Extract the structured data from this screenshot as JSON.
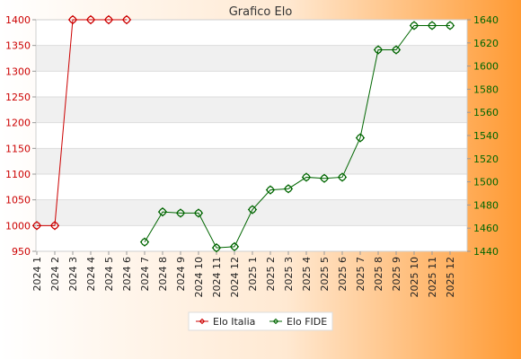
{
  "chart_data": {
    "type": "line",
    "title": "Grafico Elo",
    "categories": [
      "2024 1",
      "2024 2",
      "2024 3",
      "2024 4",
      "2024 5",
      "2024 6",
      "2024 7",
      "2024 8",
      "2024 9",
      "2024 10",
      "2024 11",
      "2024 12",
      "2025 1",
      "2025 2",
      "2025 3",
      "2025 4",
      "2025 5",
      "2025 6",
      "2025 7",
      "2025 8",
      "2025 9",
      "2025 10",
      "2025 11",
      "2025 12"
    ],
    "axes": {
      "left": {
        "min": 950,
        "max": 1400,
        "ticks": [
          "950",
          "1000",
          "1050",
          "1100",
          "1150",
          "1200",
          "1250",
          "1300",
          "1350",
          "1400"
        ],
        "color": "#cc0000"
      },
      "right": {
        "min": 1440,
        "max": 1640,
        "ticks": [
          "1440",
          "1460",
          "1480",
          "1500",
          "1520",
          "1540",
          "1560",
          "1580",
          "1600",
          "1620",
          "1640"
        ],
        "color": "#006600"
      }
    },
    "series": [
      {
        "name": "Elo Italia",
        "axis": "left",
        "color": "#cc0000",
        "values": [
          1000,
          1000,
          1400,
          1400,
          1400,
          1400,
          null,
          null,
          null,
          null,
          null,
          null,
          null,
          null,
          null,
          null,
          null,
          null,
          null,
          null,
          null,
          null,
          null,
          null
        ]
      },
      {
        "name": "Elo FIDE",
        "axis": "right",
        "color": "#006600",
        "values": [
          null,
          null,
          null,
          null,
          null,
          null,
          1448,
          1474,
          1473,
          1473,
          1443,
          1444,
          1476,
          1493,
          1494,
          1504,
          1503,
          1504,
          1538,
          1614,
          1614,
          1635,
          1635,
          1635
        ]
      }
    ],
    "legend_position": "bottom",
    "grid": true
  }
}
